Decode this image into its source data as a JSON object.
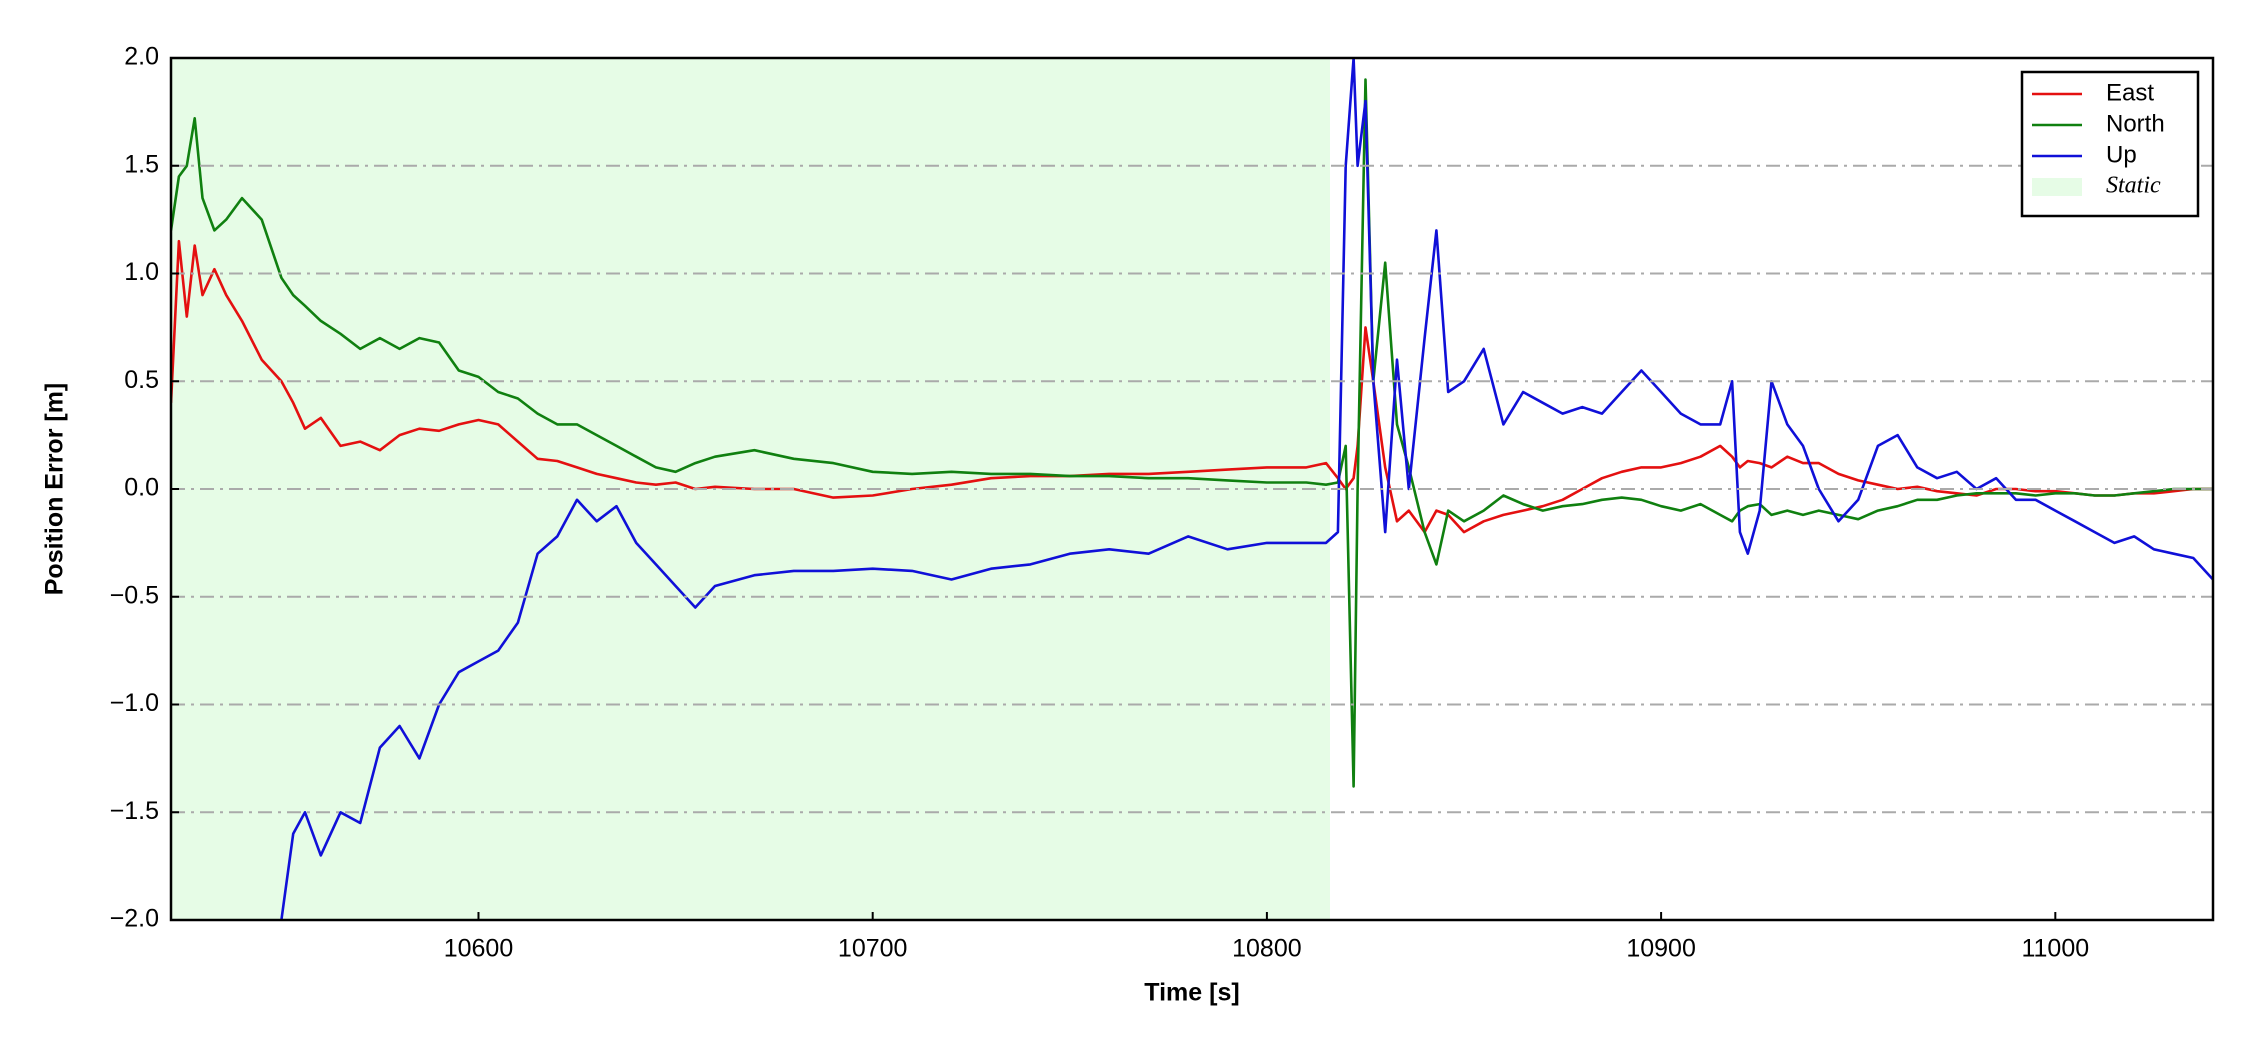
{
  "chart_data": {
    "type": "line",
    "xlabel": "Time [s]",
    "ylabel": "Position Error [m]",
    "xlim": [
      10522,
      11040
    ],
    "ylim": [
      -2,
      2
    ],
    "xticks": [
      10600,
      10700,
      10800,
      10900,
      11000
    ],
    "yticks": [
      {
        "value": -2,
        "label": "−2.0"
      },
      {
        "value": -1.5,
        "label": "−1.5"
      },
      {
        "value": -1,
        "label": "−1.0"
      },
      {
        "value": -0.5,
        "label": "−0.5"
      },
      {
        "value": 0,
        "label": "0.0"
      },
      0.5,
      {
        "value": 1,
        "label": "1.0"
      },
      1.5,
      {
        "value": 2,
        "label": "2.0"
      }
    ],
    "grid": true,
    "legend_position": "upper right",
    "shaded_regions": [
      {
        "name": "Static",
        "color": "#e6fce6",
        "xrange": [
          10522,
          10816
        ]
      }
    ],
    "x": [
      10522,
      10524,
      10526,
      10528,
      10530,
      10533,
      10536,
      10540,
      10545,
      10550,
      10553,
      10556,
      10560,
      10565,
      10570,
      10575,
      10580,
      10585,
      10590,
      10595,
      10600,
      10605,
      10610,
      10615,
      10620,
      10625,
      10630,
      10635,
      10640,
      10645,
      10650,
      10655,
      10660,
      10670,
      10680,
      10690,
      10700,
      10710,
      10720,
      10730,
      10740,
      10750,
      10760,
      10770,
      10780,
      10790,
      10800,
      10810,
      10815,
      10818,
      10820,
      10822,
      10823,
      10825,
      10827,
      10830,
      10833,
      10836,
      10840,
      10843,
      10846,
      10850,
      10855,
      10860,
      10865,
      10870,
      10875,
      10880,
      10885,
      10890,
      10895,
      10900,
      10905,
      10910,
      10915,
      10918,
      10920,
      10922,
      10925,
      10928,
      10932,
      10936,
      10940,
      10945,
      10950,
      10955,
      10960,
      10965,
      10970,
      10975,
      10980,
      10985,
      10990,
      10995,
      11000,
      11005,
      11010,
      11015,
      11020,
      11025,
      11030,
      11035,
      11040
    ],
    "series": [
      {
        "name": "East",
        "color": "#e41010",
        "values": [
          0.4,
          1.15,
          0.8,
          1.13,
          0.9,
          1.02,
          0.9,
          0.78,
          0.6,
          0.5,
          0.4,
          0.28,
          0.33,
          0.2,
          0.22,
          0.18,
          0.25,
          0.28,
          0.27,
          0.3,
          0.32,
          0.3,
          0.22,
          0.14,
          0.13,
          0.1,
          0.07,
          0.05,
          0.03,
          0.02,
          0.03,
          0.0,
          0.01,
          0.0,
          0.0,
          -0.04,
          -0.03,
          0.0,
          0.02,
          0.05,
          0.06,
          0.06,
          0.07,
          0.07,
          0.08,
          0.09,
          0.1,
          0.1,
          0.12,
          0.05,
          0.0,
          0.05,
          0.2,
          0.75,
          0.5,
          0.1,
          -0.15,
          -0.1,
          -0.2,
          -0.1,
          -0.12,
          -0.2,
          -0.15,
          -0.12,
          -0.1,
          -0.08,
          -0.05,
          0.0,
          0.05,
          0.08,
          0.1,
          0.1,
          0.12,
          0.15,
          0.2,
          0.15,
          0.1,
          0.13,
          0.12,
          0.1,
          0.15,
          0.12,
          0.12,
          0.07,
          0.04,
          0.02,
          0.0,
          0.01,
          -0.01,
          -0.02,
          -0.03,
          0.0,
          0.0,
          -0.01,
          -0.01,
          -0.02,
          -0.03,
          -0.03,
          -0.02,
          -0.02,
          -0.01,
          0.0,
          0.0
        ]
      },
      {
        "name": "North",
        "color": "#108010",
        "values": [
          1.2,
          1.45,
          1.5,
          1.72,
          1.35,
          1.2,
          1.25,
          1.35,
          1.25,
          0.98,
          0.9,
          0.85,
          0.78,
          0.72,
          0.65,
          0.7,
          0.65,
          0.7,
          0.68,
          0.55,
          0.52,
          0.45,
          0.42,
          0.35,
          0.3,
          0.3,
          0.25,
          0.2,
          0.15,
          0.1,
          0.08,
          0.12,
          0.15,
          0.18,
          0.14,
          0.12,
          0.08,
          0.07,
          0.08,
          0.07,
          0.07,
          0.06,
          0.06,
          0.05,
          0.05,
          0.04,
          0.03,
          0.03,
          0.02,
          0.03,
          0.2,
          -1.38,
          0.0,
          1.9,
          0.5,
          1.05,
          0.3,
          0.1,
          -0.2,
          -0.35,
          -0.1,
          -0.15,
          -0.1,
          -0.03,
          -0.07,
          -0.1,
          -0.08,
          -0.07,
          -0.05,
          -0.04,
          -0.05,
          -0.08,
          -0.1,
          -0.07,
          -0.12,
          -0.15,
          -0.1,
          -0.08,
          -0.07,
          -0.12,
          -0.1,
          -0.12,
          -0.1,
          -0.12,
          -0.14,
          -0.1,
          -0.08,
          -0.05,
          -0.05,
          -0.03,
          -0.02,
          -0.02,
          -0.02,
          -0.03,
          -0.02,
          -0.02,
          -0.03,
          -0.03,
          -0.02,
          -0.01,
          0.0,
          0.0,
          0.0
        ]
      },
      {
        "name": "Up",
        "color": "#1010d8",
        "values": [
          null,
          null,
          null,
          null,
          null,
          null,
          null,
          null,
          null,
          -2.0,
          -1.6,
          -1.5,
          -1.7,
          -1.5,
          -1.55,
          -1.2,
          -1.1,
          -1.25,
          -1.0,
          -0.85,
          -0.8,
          -0.75,
          -0.62,
          -0.3,
          -0.22,
          -0.05,
          -0.15,
          -0.08,
          -0.25,
          -0.35,
          -0.45,
          -0.55,
          -0.45,
          -0.4,
          -0.38,
          -0.38,
          -0.37,
          -0.38,
          -0.42,
          -0.37,
          -0.35,
          -0.3,
          -0.28,
          -0.3,
          -0.22,
          -0.28,
          -0.25,
          -0.25,
          -0.25,
          -0.2,
          1.5,
          2.0,
          1.5,
          1.8,
          0.5,
          -0.2,
          0.6,
          0.0,
          0.7,
          1.2,
          0.45,
          0.5,
          0.65,
          0.3,
          0.45,
          0.4,
          0.35,
          0.38,
          0.35,
          0.45,
          0.55,
          0.45,
          0.35,
          0.3,
          0.3,
          0.5,
          -0.2,
          -0.3,
          -0.1,
          0.5,
          0.3,
          0.2,
          0.0,
          -0.15,
          -0.05,
          0.2,
          0.25,
          0.1,
          0.05,
          0.08,
          0.0,
          0.05,
          -0.05,
          -0.05,
          -0.1,
          -0.15,
          -0.2,
          -0.25,
          -0.22,
          -0.28,
          -0.3,
          -0.32,
          -0.42
        ]
      }
    ]
  }
}
